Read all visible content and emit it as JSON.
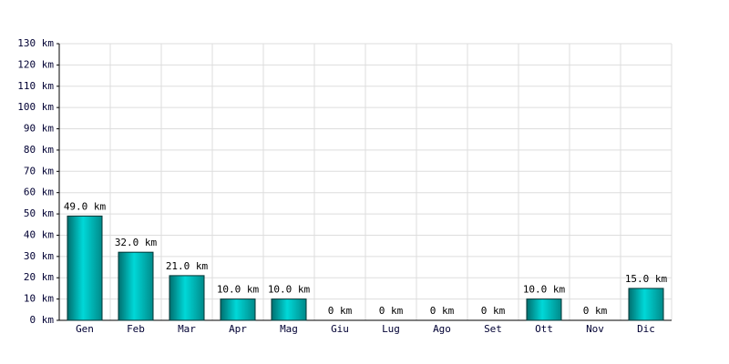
{
  "chart_data": {
    "type": "bar",
    "categories": [
      "Gen",
      "Feb",
      "Mar",
      "Apr",
      "Mag",
      "Giu",
      "Lug",
      "Ago",
      "Set",
      "Ott",
      "Nov",
      "Dic"
    ],
    "values": [
      49,
      32,
      21,
      10,
      10,
      0,
      0,
      0,
      0,
      10,
      0,
      15
    ],
    "value_labels": [
      "49.0 km",
      "32.0 km",
      "21.0 km",
      "10.0 km",
      "10.0 km",
      "0 km",
      "0 km",
      "0 km",
      "0 km",
      "10.0 km",
      "0 km",
      "15.0 km"
    ],
    "color": "#00d8d8",
    "ylim": [
      0,
      130
    ],
    "yticks": [
      {
        "value": 0,
        "label": "0 km"
      },
      {
        "value": 10,
        "label": "10 km"
      },
      {
        "value": 20,
        "label": "20 km"
      },
      {
        "value": 30,
        "label": "30 km"
      },
      {
        "value": 40,
        "label": "40 km"
      },
      {
        "value": 50,
        "label": "50 km"
      },
      {
        "value": 60,
        "label": "60 km"
      },
      {
        "value": 70,
        "label": "70 km"
      },
      {
        "value": 80,
        "label": "80 km"
      },
      {
        "value": 90,
        "label": "90 km"
      },
      {
        "value": 100,
        "label": "100 km"
      },
      {
        "value": 110,
        "label": "110 km"
      },
      {
        "value": 120,
        "label": "120 km"
      },
      {
        "value": 130,
        "label": "130 km"
      }
    ],
    "grid": true
  }
}
